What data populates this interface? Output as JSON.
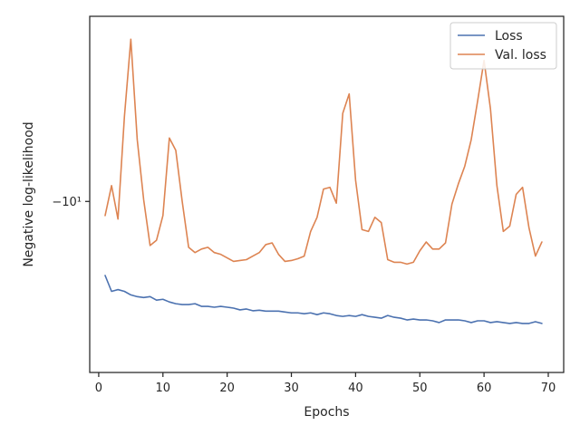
{
  "chart_data": {
    "type": "line",
    "xlabel": "Epochs",
    "ylabel": "Negative log-likelihood",
    "yscale": "symlog",
    "xlim": [
      -1.4,
      72.4
    ],
    "ylim": [
      -8.95,
      -10.97
    ],
    "x_ticks": [
      0,
      10,
      20,
      30,
      40,
      50,
      60,
      70
    ],
    "x_tick_labels": [
      "0",
      "10",
      "20",
      "30",
      "40",
      "50",
      "60",
      "70"
    ],
    "y_ticks": [
      -10
    ],
    "y_tick_labels": [
      "−10¹"
    ],
    "grid": false,
    "legend_location": "upper right",
    "colors": {
      "loss": "#4c72b0",
      "val_loss": "#dd8452",
      "axes": "#262626"
    },
    "series": [
      {
        "name": "Loss",
        "x": [
          1,
          2,
          3,
          4,
          5,
          6,
          7,
          8,
          9,
          10,
          11,
          12,
          13,
          14,
          15,
          16,
          17,
          18,
          19,
          20,
          21,
          22,
          23,
          24,
          25,
          26,
          27,
          28,
          29,
          30,
          31,
          32,
          33,
          34,
          35,
          36,
          37,
          38,
          39,
          40,
          41,
          42,
          43,
          44,
          45,
          46,
          47,
          48,
          49,
          50,
          51,
          52,
          53,
          54,
          55,
          56,
          57,
          58,
          59,
          60,
          61,
          62,
          63,
          64,
          65,
          66,
          67,
          68,
          69
        ],
        "y": [
          -10.42,
          -10.51,
          -10.5,
          -10.51,
          -10.53,
          -10.54,
          -10.545,
          -10.54,
          -10.56,
          -10.555,
          -10.57,
          -10.58,
          -10.585,
          -10.585,
          -10.58,
          -10.595,
          -10.595,
          -10.6,
          -10.595,
          -10.6,
          -10.605,
          -10.615,
          -10.61,
          -10.62,
          -10.617,
          -10.622,
          -10.622,
          -10.622,
          -10.627,
          -10.632,
          -10.632,
          -10.637,
          -10.632,
          -10.642,
          -10.632,
          -10.637,
          -10.647,
          -10.652,
          -10.647,
          -10.652,
          -10.642,
          -10.652,
          -10.657,
          -10.662,
          -10.647,
          -10.657,
          -10.662,
          -10.672,
          -10.667,
          -10.672,
          -10.672,
          -10.677,
          -10.687,
          -10.672,
          -10.672,
          -10.672,
          -10.677,
          -10.687,
          -10.677,
          -10.677,
          -10.687,
          -10.682,
          -10.687,
          -10.692,
          -10.687,
          -10.692,
          -10.692,
          -10.682,
          -10.692
        ]
      },
      {
        "name": "Val. loss",
        "x": [
          1,
          2,
          3,
          4,
          5,
          6,
          7,
          8,
          9,
          10,
          11,
          12,
          13,
          14,
          15,
          16,
          17,
          18,
          19,
          20,
          21,
          22,
          23,
          24,
          25,
          26,
          27,
          28,
          29,
          30,
          31,
          32,
          33,
          34,
          35,
          36,
          37,
          38,
          39,
          40,
          41,
          42,
          43,
          44,
          45,
          46,
          47,
          48,
          49,
          50,
          51,
          52,
          53,
          54,
          55,
          56,
          57,
          58,
          59,
          60,
          61,
          62,
          63,
          64,
          65,
          66,
          67,
          68,
          69
        ],
        "y": [
          -10.08,
          -9.91,
          -10.1,
          -9.52,
          -9.08,
          -9.65,
          -9.99,
          -10.25,
          -10.22,
          -10.08,
          -9.64,
          -9.71,
          -10.0,
          -10.26,
          -10.29,
          -10.27,
          -10.26,
          -10.29,
          -10.3,
          -10.32,
          -10.34,
          -10.335,
          -10.33,
          -10.31,
          -10.29,
          -10.245,
          -10.235,
          -10.3,
          -10.34,
          -10.335,
          -10.325,
          -10.31,
          -10.17,
          -10.09,
          -9.93,
          -9.92,
          -10.01,
          -9.5,
          -9.39,
          -9.88,
          -10.16,
          -10.17,
          -10.09,
          -10.12,
          -10.33,
          -10.345,
          -10.345,
          -10.355,
          -10.345,
          -10.28,
          -10.23,
          -10.27,
          -10.27,
          -10.235,
          -10.015,
          -9.9,
          -9.8,
          -9.65,
          -9.43,
          -9.2,
          -9.475,
          -9.91,
          -10.17,
          -10.14,
          -9.96,
          -9.92,
          -10.15,
          -10.31,
          -10.23
        ]
      }
    ]
  }
}
